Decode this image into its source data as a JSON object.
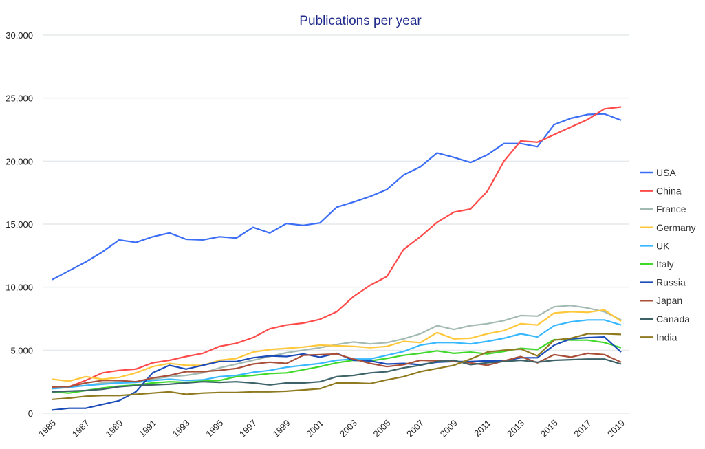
{
  "chart_data": {
    "type": "line",
    "title": "Publications per year",
    "xlabel": "",
    "ylabel": "",
    "ylim": [
      0,
      30000
    ],
    "yticks": [
      0,
      5000,
      10000,
      15000,
      20000,
      25000,
      30000
    ],
    "ytick_labels": [
      "0",
      "5,000",
      "10,000",
      "15,000",
      "20,000",
      "25,000",
      "30,000"
    ],
    "xticks": [
      "1985",
      "1987",
      "1989",
      "1991",
      "1993",
      "1995",
      "1997",
      "1999",
      "2001",
      "2003",
      "2005",
      "2007",
      "2009",
      "2011",
      "2013",
      "2015",
      "2017",
      "2019"
    ],
    "x": [
      1985,
      1986,
      1987,
      1988,
      1989,
      1990,
      1991,
      1992,
      1993,
      1994,
      1995,
      1996,
      1997,
      1998,
      1999,
      2000,
      2001,
      2002,
      2003,
      2004,
      2005,
      2006,
      2007,
      2008,
      2009,
      2010,
      2011,
      2012,
      2013,
      2014,
      2015,
      2016,
      2017,
      2018,
      2019
    ],
    "grid": "horizontal",
    "legend_position": "right",
    "series": [
      {
        "name": "USA",
        "color": "#3b6df5",
        "values": [
          10600,
          11300,
          12000,
          12800,
          13750,
          13550,
          14000,
          14300,
          13800,
          13750,
          14000,
          13900,
          14750,
          14300,
          15050,
          14900,
          15100,
          16350,
          16750,
          17200,
          17750,
          18900,
          19550,
          20650,
          20300,
          19900,
          20500,
          21400,
          21400,
          21150,
          22900,
          23400,
          23700,
          23750,
          23250
        ]
      },
      {
        "name": "China",
        "color": "#ff4a4a",
        "values": [
          2000,
          2100,
          2600,
          3200,
          3400,
          3500,
          4000,
          4200,
          4500,
          4750,
          5300,
          5550,
          6000,
          6700,
          7000,
          7150,
          7450,
          8050,
          9250,
          10150,
          10850,
          13000,
          14000,
          15150,
          15950,
          16200,
          17600,
          20000,
          21600,
          21500,
          22100,
          22700,
          23300,
          24150,
          24300
        ]
      },
      {
        "name": "France",
        "color": "#a3bab3",
        "values": [
          2100,
          2100,
          2200,
          2400,
          2500,
          2500,
          2700,
          2900,
          3000,
          3200,
          3600,
          3900,
          4200,
          4500,
          4800,
          5000,
          5200,
          5450,
          5650,
          5500,
          5600,
          5900,
          6300,
          6950,
          6650,
          6950,
          7100,
          7350,
          7750,
          7700,
          8450,
          8550,
          8350,
          8050,
          7400
        ]
      },
      {
        "name": "Germany",
        "color": "#ffc73a",
        "values": [
          2700,
          2550,
          2900,
          2700,
          2850,
          3200,
          3700,
          3950,
          3800,
          3800,
          4200,
          4350,
          4850,
          5050,
          5150,
          5250,
          5400,
          5350,
          5300,
          5200,
          5300,
          5700,
          5600,
          6400,
          5900,
          5950,
          6300,
          6550,
          7100,
          7000,
          7950,
          8050,
          8000,
          8200,
          7300
        ]
      },
      {
        "name": "UK",
        "color": "#38b8ff",
        "values": [
          1950,
          2050,
          2200,
          2300,
          2400,
          2450,
          2600,
          2700,
          2600,
          2650,
          2900,
          3000,
          3250,
          3400,
          3650,
          3800,
          3950,
          4200,
          4300,
          4300,
          4600,
          4900,
          5400,
          5600,
          5600,
          5500,
          5700,
          5950,
          6300,
          6050,
          6950,
          7250,
          7400,
          7400,
          7000
        ]
      },
      {
        "name": "Italy",
        "color": "#3fd92a",
        "values": [
          1700,
          1600,
          1800,
          2000,
          2150,
          2250,
          2400,
          2500,
          2450,
          2550,
          2600,
          2900,
          3000,
          3150,
          3200,
          3450,
          3700,
          4000,
          4200,
          4150,
          4350,
          4600,
          4750,
          4950,
          4750,
          4850,
          4700,
          4900,
          5150,
          5050,
          5850,
          5800,
          5800,
          5600,
          5200
        ]
      },
      {
        "name": "Russia",
        "color": "#1a4bb8",
        "values": [
          250,
          400,
          400,
          700,
          1000,
          1700,
          3200,
          3800,
          3500,
          3800,
          4100,
          4100,
          4400,
          4550,
          4500,
          4700,
          4450,
          4750,
          4200,
          4150,
          3900,
          3950,
          3850,
          4050,
          4100,
          4100,
          4150,
          4150,
          4400,
          4400,
          5400,
          5900,
          6000,
          6050,
          4850
        ]
      },
      {
        "name": "Japan",
        "color": "#a8503a",
        "values": [
          2100,
          2100,
          2400,
          2600,
          2600,
          2500,
          2800,
          3000,
          3300,
          3300,
          3400,
          3550,
          3900,
          4050,
          3950,
          4600,
          4650,
          4700,
          4300,
          3950,
          3700,
          3850,
          4200,
          4150,
          4100,
          4000,
          3800,
          4150,
          4500,
          4000,
          4650,
          4450,
          4750,
          4650,
          4050
        ]
      },
      {
        "name": "Canada",
        "color": "#3d6268",
        "values": [
          1700,
          1750,
          1800,
          1900,
          2100,
          2200,
          2250,
          2300,
          2400,
          2500,
          2450,
          2500,
          2400,
          2250,
          2400,
          2400,
          2500,
          2900,
          3000,
          3200,
          3300,
          3600,
          3800,
          4100,
          4200,
          3850,
          4000,
          4100,
          4200,
          4050,
          4200,
          4250,
          4300,
          4300,
          3900
        ]
      },
      {
        "name": "India",
        "color": "#8f7a20",
        "values": [
          1100,
          1200,
          1350,
          1400,
          1400,
          1500,
          1600,
          1700,
          1500,
          1600,
          1650,
          1650,
          1700,
          1700,
          1750,
          1850,
          1950,
          2400,
          2400,
          2350,
          2650,
          2900,
          3300,
          3550,
          3800,
          4300,
          4850,
          5000,
          5100,
          4550,
          5800,
          5950,
          6300,
          6300,
          6250
        ]
      }
    ]
  }
}
